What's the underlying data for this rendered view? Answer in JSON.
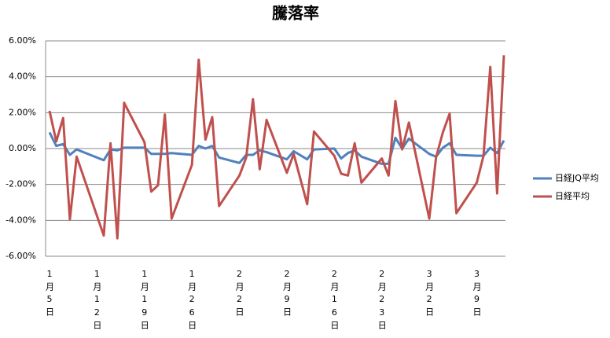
{
  "chart_data": {
    "type": "line",
    "title": "騰落率",
    "x": [
      "1月5日",
      "1月6日",
      "1月7日",
      "1月8日",
      "1月9日",
      "1月13日",
      "1月14日",
      "1月15日",
      "1月16日",
      "1月19日",
      "1月20日",
      "1月21日",
      "1月22日",
      "1月23日",
      "1月26日",
      "1月27日",
      "1月28日",
      "1月29日",
      "1月30日",
      "2月2日",
      "2月3日",
      "2月4日",
      "2月5日",
      "2月6日",
      "2月9日",
      "2月10日",
      "2月12日",
      "2月13日",
      "2月16日",
      "2月17日",
      "2月18日",
      "2月19日",
      "2月20日",
      "2月23日",
      "2月24日",
      "2月25日",
      "2月26日",
      "2月27日",
      "3月2日",
      "3月3日",
      "3月4日",
      "3月5日",
      "3月6日",
      "3月9日",
      "3月10日",
      "3月11日",
      "3月12日",
      "3月13日"
    ],
    "xlim": [
      "1月5日",
      "3月13日"
    ],
    "xticks": [
      "1月5日",
      "1月12日",
      "1月19日",
      "1月26日",
      "2月2日",
      "2月9日",
      "2月16日",
      "2月23日",
      "3月2日",
      "3月9日"
    ],
    "series": [
      {
        "name": "日経JQ平均",
        "color": "#4f81bd",
        "values": [
          0.9,
          0.15,
          0.25,
          -0.35,
          -0.05,
          -0.65,
          -0.05,
          -0.1,
          0.05,
          0.05,
          -0.3,
          -0.3,
          -0.3,
          -0.25,
          -0.35,
          0.15,
          0.0,
          0.15,
          -0.5,
          -0.8,
          -0.35,
          -0.35,
          -0.1,
          -0.2,
          -0.6,
          -0.15,
          -0.6,
          -0.05,
          0.0,
          -0.55,
          -0.25,
          -0.1,
          -0.45,
          -0.85,
          -0.85,
          0.6,
          0.0,
          0.55,
          -0.3,
          -0.45,
          0.05,
          0.3,
          -0.35,
          -0.4,
          -0.4,
          0.05,
          -0.25,
          0.45
        ]
      },
      {
        "name": "日経平均",
        "color": "#c0504d",
        "values": [
          2.1,
          0.4,
          1.7,
          -3.95,
          -0.45,
          -4.85,
          0.3,
          -5.0,
          2.55,
          0.35,
          -2.4,
          -2.05,
          1.9,
          -3.9,
          -0.9,
          4.95,
          0.5,
          1.75,
          -3.2,
          -1.5,
          -0.5,
          2.75,
          -1.15,
          1.6,
          -1.35,
          -0.3,
          -3.1,
          0.95,
          -0.4,
          -1.4,
          -1.5,
          0.3,
          -1.9,
          -0.55,
          -1.5,
          2.65,
          -0.05,
          1.45,
          -3.9,
          -0.5,
          0.9,
          1.95,
          -3.6,
          -1.9,
          -0.4,
          4.55,
          -2.5,
          5.2
        ]
      }
    ],
    "ylim": [
      -6,
      6
    ],
    "yticks": [
      {
        "value": -6,
        "label": "-6.00%"
      },
      {
        "value": -4,
        "label": "-4.00%"
      },
      {
        "value": -2,
        "label": "-2.00%"
      },
      {
        "value": 0,
        "label": "0.00%"
      },
      {
        "value": 2,
        "label": "2.00%"
      },
      {
        "value": 4,
        "label": "4.00%"
      },
      {
        "value": 6,
        "label": "6.00%"
      }
    ],
    "grid": true,
    "legend": "right"
  }
}
